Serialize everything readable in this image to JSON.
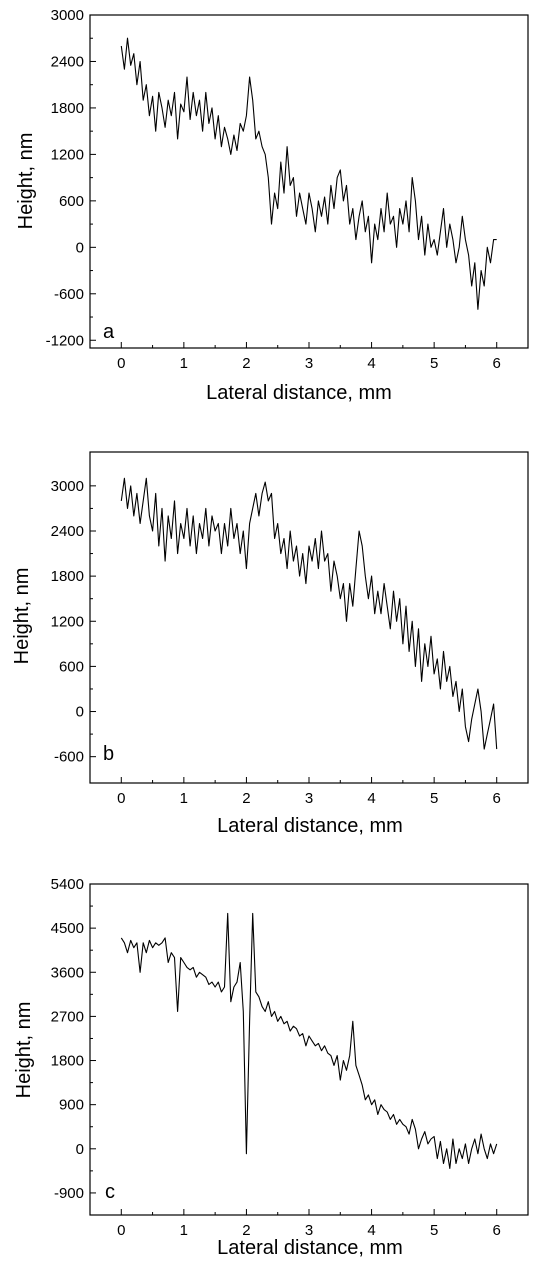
{
  "chart_data": [
    {
      "type": "line",
      "panel_label": "a",
      "xlabel": "Lateral distance, mm",
      "ylabel": "Height, nm",
      "xlim": [
        -0.5,
        6.5
      ],
      "ylim": [
        -1300,
        3000
      ],
      "xticks": [
        0,
        1,
        2,
        3,
        4,
        5,
        6
      ],
      "yticks": [
        -1200,
        -600,
        0,
        600,
        1200,
        1800,
        2400,
        3000
      ],
      "grid": false,
      "series": [
        {
          "x": [
            0,
            0.05,
            0.1,
            0.15,
            0.2,
            0.25,
            0.3,
            0.35,
            0.4,
            0.45,
            0.5,
            0.55,
            0.6,
            0.65,
            0.7,
            0.75,
            0.8,
            0.85,
            0.9,
            0.95,
            1.0,
            1.05,
            1.1,
            1.15,
            1.2,
            1.25,
            1.3,
            1.35,
            1.4,
            1.45,
            1.5,
            1.55,
            1.6,
            1.65,
            1.7,
            1.75,
            1.8,
            1.85,
            1.9,
            1.95,
            2.0,
            2.05,
            2.1,
            2.15,
            2.2,
            2.25,
            2.3,
            2.35,
            2.4,
            2.45,
            2.5,
            2.55,
            2.6,
            2.65,
            2.7,
            2.75,
            2.8,
            2.85,
            2.9,
            2.95,
            3.0,
            3.05,
            3.1,
            3.15,
            3.2,
            3.25,
            3.3,
            3.35,
            3.4,
            3.45,
            3.5,
            3.55,
            3.6,
            3.65,
            3.7,
            3.75,
            3.8,
            3.85,
            3.9,
            3.95,
            4.0,
            4.05,
            4.1,
            4.15,
            4.2,
            4.25,
            4.3,
            4.35,
            4.4,
            4.45,
            4.5,
            4.55,
            4.6,
            4.65,
            4.7,
            4.75,
            4.8,
            4.85,
            4.9,
            4.95,
            5.0,
            5.05,
            5.1,
            5.15,
            5.2,
            5.25,
            5.3,
            5.35,
            5.4,
            5.45,
            5.5,
            5.55,
            5.6,
            5.65,
            5.7,
            5.75,
            5.8,
            5.85,
            5.9,
            5.95,
            6.0
          ],
          "y": [
            2600,
            2300,
            2700,
            2350,
            2500,
            2100,
            2400,
            1900,
            2100,
            1700,
            1950,
            1500,
            2000,
            1800,
            1550,
            1900,
            1700,
            2000,
            1400,
            1850,
            1750,
            2200,
            1650,
            2000,
            1700,
            1900,
            1500,
            2000,
            1600,
            1800,
            1400,
            1700,
            1300,
            1550,
            1400,
            1200,
            1450,
            1250,
            1600,
            1500,
            1700,
            2200,
            1900,
            1400,
            1500,
            1300,
            1200,
            900,
            300,
            700,
            500,
            1100,
            700,
            1300,
            800,
            900,
            400,
            700,
            500,
            300,
            700,
            500,
            200,
            600,
            400,
            650,
            300,
            800,
            500,
            900,
            1000,
            600,
            800,
            300,
            500,
            100,
            400,
            600,
            200,
            400,
            -200,
            300,
            100,
            500,
            200,
            700,
            300,
            400,
            0,
            500,
            300,
            600,
            200,
            900,
            600,
            100,
            400,
            -100,
            300,
            0,
            100,
            -100,
            200,
            500,
            0,
            300,
            100,
            -200,
            0,
            400,
            100,
            -100,
            -500,
            -200,
            -800,
            -300,
            -500,
            0,
            -200,
            100,
            100
          ]
        }
      ]
    },
    {
      "type": "line",
      "panel_label": "b",
      "xlabel": "Lateral distance, mm",
      "ylabel": "Height, nm",
      "xlim": [
        -0.5,
        6.5
      ],
      "ylim": [
        -950,
        3450
      ],
      "xticks": [
        0,
        1,
        2,
        3,
        4,
        5,
        6
      ],
      "yticks": [
        -600,
        0,
        600,
        1200,
        1800,
        2400,
        3000
      ],
      "grid": false,
      "series": [
        {
          "x": [
            0,
            0.05,
            0.1,
            0.15,
            0.2,
            0.25,
            0.3,
            0.35,
            0.4,
            0.45,
            0.5,
            0.55,
            0.6,
            0.65,
            0.7,
            0.75,
            0.8,
            0.85,
            0.9,
            0.95,
            1.0,
            1.05,
            1.1,
            1.15,
            1.2,
            1.25,
            1.3,
            1.35,
            1.4,
            1.45,
            1.5,
            1.55,
            1.6,
            1.65,
            1.7,
            1.75,
            1.8,
            1.85,
            1.9,
            1.95,
            2.0,
            2.05,
            2.1,
            2.15,
            2.2,
            2.25,
            2.3,
            2.35,
            2.4,
            2.45,
            2.5,
            2.55,
            2.6,
            2.65,
            2.7,
            2.75,
            2.8,
            2.85,
            2.9,
            2.95,
            3.0,
            3.05,
            3.1,
            3.15,
            3.2,
            3.25,
            3.3,
            3.35,
            3.4,
            3.45,
            3.5,
            3.55,
            3.6,
            3.65,
            3.7,
            3.75,
            3.8,
            3.85,
            3.9,
            3.95,
            4.0,
            4.05,
            4.1,
            4.15,
            4.2,
            4.25,
            4.3,
            4.35,
            4.4,
            4.45,
            4.5,
            4.55,
            4.6,
            4.65,
            4.7,
            4.75,
            4.8,
            4.85,
            4.9,
            4.95,
            5.0,
            5.05,
            5.1,
            5.15,
            5.2,
            5.25,
            5.3,
            5.35,
            5.4,
            5.45,
            5.5,
            5.55,
            5.6,
            5.65,
            5.7,
            5.75,
            5.8,
            5.85,
            5.9,
            5.95,
            6.0
          ],
          "y": [
            2800,
            3100,
            2700,
            3000,
            2600,
            2900,
            2500,
            2800,
            3100,
            2600,
            2400,
            2900,
            2200,
            2700,
            2000,
            2600,
            2300,
            2800,
            2100,
            2500,
            2300,
            2700,
            2200,
            2600,
            2100,
            2500,
            2300,
            2700,
            2200,
            2600,
            2400,
            2500,
            2100,
            2500,
            2200,
            2700,
            2300,
            2500,
            2100,
            2400,
            1900,
            2500,
            2700,
            2900,
            2600,
            2900,
            3050,
            2800,
            2900,
            2300,
            2500,
            2100,
            2300,
            1900,
            2400,
            2000,
            2200,
            1800,
            2100,
            1700,
            2200,
            2000,
            2300,
            1900,
            2400,
            2000,
            2100,
            1600,
            2000,
            1800,
            1500,
            1700,
            1200,
            1700,
            1400,
            1900,
            2400,
            2200,
            1800,
            1500,
            1800,
            1300,
            1600,
            1300,
            1700,
            1400,
            1100,
            1600,
            1200,
            1500,
            900,
            1400,
            800,
            1200,
            600,
            1100,
            400,
            900,
            600,
            1000,
            500,
            700,
            300,
            800,
            400,
            600,
            200,
            400,
            0,
            300,
            -200,
            -400,
            -100,
            100,
            300,
            0,
            -500,
            -300,
            -100,
            100,
            -500
          ]
        }
      ]
    },
    {
      "type": "line",
      "panel_label": "c",
      "xlabel": "Lateral distance, mm",
      "ylabel": "Height, nm",
      "xlim": [
        -0.5,
        6.5
      ],
      "ylim": [
        -1350,
        5400
      ],
      "xticks": [
        0,
        1,
        2,
        3,
        4,
        5,
        6
      ],
      "yticks": [
        -900,
        0,
        900,
        1800,
        2700,
        3600,
        4500,
        5400
      ],
      "grid": false,
      "series": [
        {
          "x": [
            0,
            0.05,
            0.1,
            0.15,
            0.2,
            0.25,
            0.3,
            0.35,
            0.4,
            0.45,
            0.5,
            0.55,
            0.6,
            0.65,
            0.7,
            0.75,
            0.8,
            0.85,
            0.9,
            0.95,
            1.0,
            1.05,
            1.1,
            1.15,
            1.2,
            1.25,
            1.3,
            1.35,
            1.4,
            1.45,
            1.5,
            1.55,
            1.6,
            1.65,
            1.7,
            1.75,
            1.8,
            1.85,
            1.9,
            1.95,
            2.0,
            2.05,
            2.1,
            2.15,
            2.2,
            2.25,
            2.3,
            2.35,
            2.4,
            2.45,
            2.5,
            2.55,
            2.6,
            2.65,
            2.7,
            2.75,
            2.8,
            2.85,
            2.9,
            2.95,
            3.0,
            3.05,
            3.1,
            3.15,
            3.2,
            3.25,
            3.3,
            3.35,
            3.4,
            3.45,
            3.5,
            3.55,
            3.6,
            3.65,
            3.7,
            3.75,
            3.8,
            3.85,
            3.9,
            3.95,
            4.0,
            4.05,
            4.1,
            4.15,
            4.2,
            4.25,
            4.3,
            4.35,
            4.4,
            4.45,
            4.5,
            4.55,
            4.6,
            4.65,
            4.7,
            4.75,
            4.8,
            4.85,
            4.9,
            4.95,
            5.0,
            5.05,
            5.1,
            5.15,
            5.2,
            5.25,
            5.3,
            5.35,
            5.4,
            5.45,
            5.5,
            5.55,
            5.6,
            5.65,
            5.7,
            5.75,
            5.8,
            5.85,
            5.9,
            5.95,
            6.0
          ],
          "y": [
            4300,
            4200,
            4000,
            4250,
            4100,
            4200,
            3600,
            4200,
            4000,
            4250,
            4100,
            4200,
            4150,
            4200,
            4300,
            3800,
            4000,
            3900,
            2800,
            3900,
            3800,
            3700,
            3650,
            3700,
            3500,
            3600,
            3550,
            3500,
            3350,
            3400,
            3300,
            3400,
            3200,
            3300,
            4800,
            3000,
            3300,
            3400,
            3800,
            2800,
            -100,
            2600,
            4800,
            3200,
            3100,
            2900,
            2800,
            3000,
            2700,
            2800,
            2600,
            2700,
            2550,
            2600,
            2400,
            2500,
            2450,
            2300,
            2350,
            2100,
            2300,
            2200,
            2100,
            2150,
            2000,
            2100,
            1950,
            1900,
            1700,
            1900,
            1400,
            1800,
            1600,
            1900,
            2600,
            1700,
            1500,
            1300,
            1000,
            1100,
            900,
            1000,
            700,
            900,
            800,
            750,
            600,
            700,
            500,
            600,
            500,
            450,
            300,
            600,
            400,
            0,
            200,
            350,
            100,
            200,
            250,
            -200,
            150,
            -300,
            0,
            -400,
            200,
            -300,
            0,
            -200,
            100,
            -300,
            0,
            200,
            -100,
            300,
            0,
            -200,
            100,
            -100,
            100
          ]
        }
      ]
    }
  ]
}
